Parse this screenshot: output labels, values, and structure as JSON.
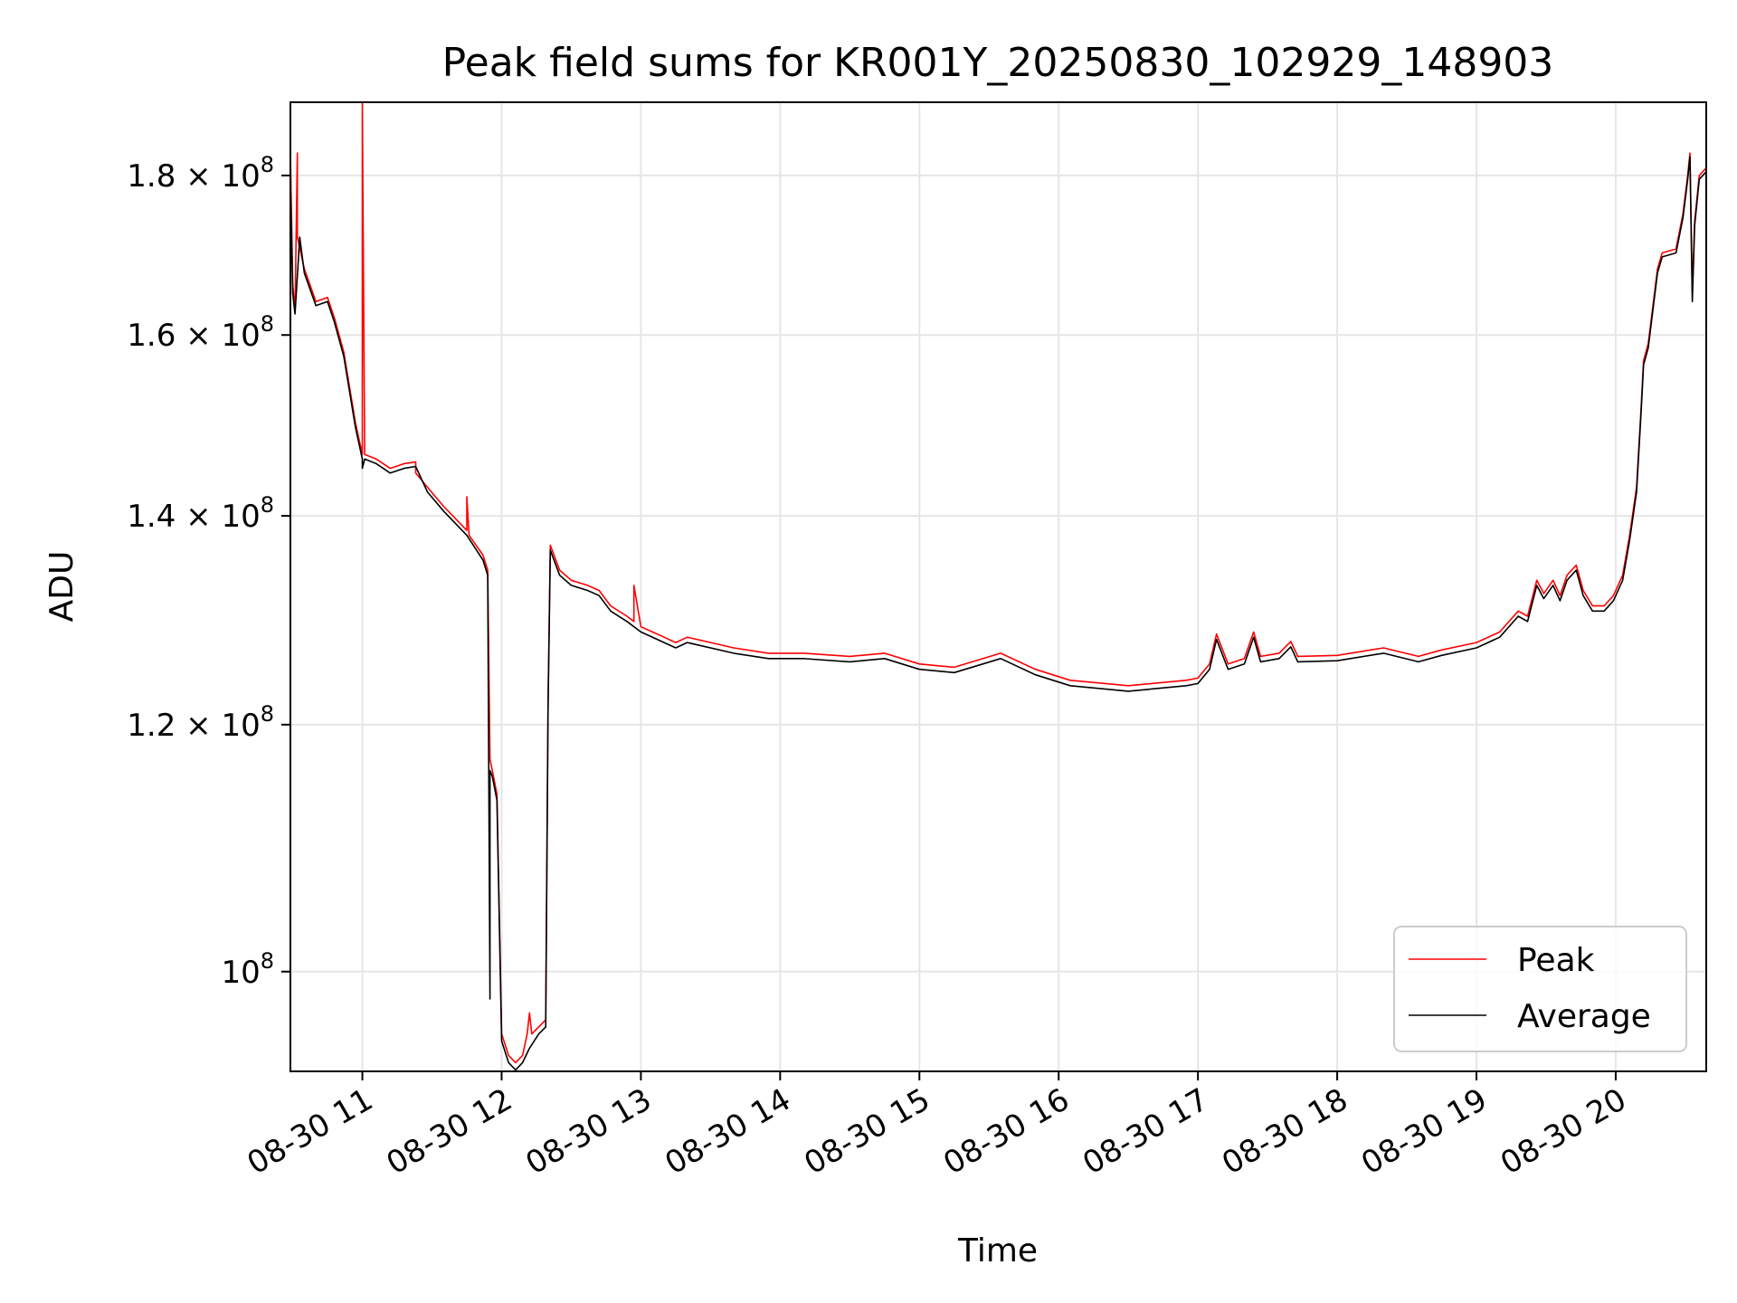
{
  "chart_data": {
    "type": "line",
    "title": "Peak field sums for KR001Y_20250830_102929_148903",
    "xlabel": "Time",
    "ylabel": "ADU",
    "y_scale": "log",
    "xlim": [
      "2025-08-30 10:29",
      "2025-08-30 20:39"
    ],
    "ylim": [
      92900000,
      190000000
    ],
    "grid": true,
    "legend_position": "lower-right",
    "x_ticks": [
      {
        "t": "2025-08-30 11:00",
        "label": "08-30 11"
      },
      {
        "t": "2025-08-30 12:00",
        "label": "08-30 12"
      },
      {
        "t": "2025-08-30 13:00",
        "label": "08-30 13"
      },
      {
        "t": "2025-08-30 14:00",
        "label": "08-30 14"
      },
      {
        "t": "2025-08-30 15:00",
        "label": "08-30 15"
      },
      {
        "t": "2025-08-30 16:00",
        "label": "08-30 16"
      },
      {
        "t": "2025-08-30 17:00",
        "label": "08-30 17"
      },
      {
        "t": "2025-08-30 18:00",
        "label": "08-30 18"
      },
      {
        "t": "2025-08-30 19:00",
        "label": "08-30 19"
      },
      {
        "t": "2025-08-30 20:00",
        "label": "08-30 20"
      }
    ],
    "y_ticks": [
      {
        "v": 100000000,
        "mant": "10",
        "exp": "8",
        "mult": ""
      },
      {
        "v": 120000000,
        "mant": "1.2",
        "exp": "8",
        "mult": "× 10"
      },
      {
        "v": 140000000,
        "mant": "1.4",
        "exp": "8",
        "mult": "× 10"
      },
      {
        "v": 160000000,
        "mant": "1.6",
        "exp": "8",
        "mult": "× 10"
      },
      {
        "v": 180000000,
        "mant": "1.8",
        "exp": "8",
        "mult": "× 10"
      }
    ],
    "series": [
      {
        "name": "Peak",
        "color": "#ff0000",
        "points": [
          [
            "2025-08-30 10:29",
            183000000.0
          ],
          [
            "2025-08-30 10:30",
            166000000.0
          ],
          [
            "2025-08-30 10:31",
            163000000.0
          ],
          [
            "2025-08-30 10:32",
            183000000.0
          ],
          [
            "2025-08-30 10:32",
            172000000.0
          ],
          [
            "2025-08-30 10:35",
            168000000.0
          ],
          [
            "2025-08-30 10:40",
            164000000.0
          ],
          [
            "2025-08-30 10:45",
            164500000.0
          ],
          [
            "2025-08-30 10:48",
            162000000.0
          ],
          [
            "2025-08-30 10:52",
            158000000.0
          ],
          [
            "2025-08-30 10:57",
            150000000.0
          ],
          [
            "2025-08-30 11:00",
            146500000.0
          ],
          [
            "2025-08-30 11:00",
            190000000.0
          ],
          [
            "2025-08-30 11:01",
            146500000.0
          ],
          [
            "2025-08-30 11:06",
            146000000.0
          ],
          [
            "2025-08-30 11:12",
            145000000.0
          ],
          [
            "2025-08-30 11:18",
            145500000.0
          ],
          [
            "2025-08-30 11:23",
            145700000.0
          ],
          [
            "2025-08-30 11:23",
            144500000.0
          ],
          [
            "2025-08-30 11:28",
            143000000.0
          ],
          [
            "2025-08-30 11:35",
            141000000.0
          ],
          [
            "2025-08-30 11:45",
            138500000.0
          ],
          [
            "2025-08-30 11:45",
            142000000.0
          ],
          [
            "2025-08-30 11:46",
            138000000.0
          ],
          [
            "2025-08-30 11:52",
            136000000.0
          ],
          [
            "2025-08-30 11:54",
            134500000.0
          ],
          [
            "2025-08-30 11:55",
            117000000.0
          ],
          [
            "2025-08-30 11:56",
            116000000.0
          ],
          [
            "2025-08-30 11:58",
            114000000.0
          ],
          [
            "2025-08-30 12:00",
            95500000.0
          ],
          [
            "2025-08-30 12:03",
            94000000.0
          ],
          [
            "2025-08-30 12:06",
            93500000.0
          ],
          [
            "2025-08-30 12:09",
            94000000.0
          ],
          [
            "2025-08-30 12:11",
            95500000.0
          ],
          [
            "2025-08-30 12:12",
            97000000.0
          ],
          [
            "2025-08-30 12:13",
            95500000.0
          ],
          [
            "2025-08-30 12:16",
            96000000.0
          ],
          [
            "2025-08-30 12:19",
            96500000.0
          ],
          [
            "2025-08-30 12:20",
            122000000.0
          ],
          [
            "2025-08-30 12:21",
            137000000.0
          ],
          [
            "2025-08-30 12:25",
            134500000.0
          ],
          [
            "2025-08-30 12:30",
            133500000.0
          ],
          [
            "2025-08-30 12:37",
            133000000.0
          ],
          [
            "2025-08-30 12:42",
            132500000.0
          ],
          [
            "2025-08-30 12:47",
            131000000.0
          ],
          [
            "2025-08-30 12:54",
            130000000.0
          ],
          [
            "2025-08-30 12:57",
            129500000.0
          ],
          [
            "2025-08-30 12:57",
            133000000.0
          ],
          [
            "2025-08-30 13:00",
            129000000.0
          ],
          [
            "2025-08-30 13:10",
            128000000.0
          ],
          [
            "2025-08-30 13:15",
            127500000.0
          ],
          [
            "2025-08-30 13:20",
            128000000.0
          ],
          [
            "2025-08-30 13:40",
            127000000.0
          ],
          [
            "2025-08-30 13:55",
            126500000.0
          ],
          [
            "2025-08-30 14:10",
            126500000.0
          ],
          [
            "2025-08-30 14:30",
            126200000.0
          ],
          [
            "2025-08-30 14:45",
            126500000.0
          ],
          [
            "2025-08-30 15:00",
            125500000.0
          ],
          [
            "2025-08-30 15:15",
            125200000.0
          ],
          [
            "2025-08-30 15:35",
            126500000.0
          ],
          [
            "2025-08-30 15:50",
            125000000.0
          ],
          [
            "2025-08-30 16:05",
            124000000.0
          ],
          [
            "2025-08-30 16:30",
            123500000.0
          ],
          [
            "2025-08-30 16:55",
            124000000.0
          ],
          [
            "2025-08-30 17:00",
            124200000.0
          ],
          [
            "2025-08-30 17:05",
            125500000.0
          ],
          [
            "2025-08-30 17:08",
            128300000.0
          ],
          [
            "2025-08-30 17:13",
            125500000.0
          ],
          [
            "2025-08-30 17:20",
            126000000.0
          ],
          [
            "2025-08-30 17:24",
            128500000.0
          ],
          [
            "2025-08-30 17:27",
            126200000.0
          ],
          [
            "2025-08-30 17:35",
            126500000.0
          ],
          [
            "2025-08-30 17:40",
            127600000.0
          ],
          [
            "2025-08-30 17:43",
            126200000.0
          ],
          [
            "2025-08-30 18:00",
            126300000.0
          ],
          [
            "2025-08-30 18:20",
            127000000.0
          ],
          [
            "2025-08-30 18:35",
            126200000.0
          ],
          [
            "2025-08-30 18:45",
            126800000.0
          ],
          [
            "2025-08-30 19:00",
            127500000.0
          ],
          [
            "2025-08-30 19:10",
            128500000.0
          ],
          [
            "2025-08-30 19:18",
            130500000.0
          ],
          [
            "2025-08-30 19:22",
            130000000.0
          ],
          [
            "2025-08-30 19:26",
            133500000.0
          ],
          [
            "2025-08-30 19:29",
            132200000.0
          ],
          [
            "2025-08-30 19:33",
            133500000.0
          ],
          [
            "2025-08-30 19:36",
            132000000.0
          ],
          [
            "2025-08-30 19:39",
            134000000.0
          ],
          [
            "2025-08-30 19:43",
            135000000.0
          ],
          [
            "2025-08-30 19:46",
            132500000.0
          ],
          [
            "2025-08-30 19:50",
            131000000.0
          ],
          [
            "2025-08-30 19:55",
            131000000.0
          ],
          [
            "2025-08-30 19:59",
            132000000.0
          ],
          [
            "2025-08-30 20:03",
            134000000.0
          ],
          [
            "2025-08-30 20:06",
            138000000.0
          ],
          [
            "2025-08-30 20:09",
            143000000.0
          ],
          [
            "2025-08-30 20:11",
            152000000.0
          ],
          [
            "2025-08-30 20:12",
            157000000.0
          ],
          [
            "2025-08-30 20:14",
            159000000.0
          ],
          [
            "2025-08-30 20:18",
            168000000.0
          ],
          [
            "2025-08-30 20:20",
            170000000.0
          ],
          [
            "2025-08-30 20:26",
            170500000.0
          ],
          [
            "2025-08-30 20:29",
            175000000.0
          ],
          [
            "2025-08-30 20:31",
            180000000.0
          ],
          [
            "2025-08-30 20:32",
            183000000.0
          ],
          [
            "2025-08-30 20:33",
            165000000.0
          ],
          [
            "2025-08-30 20:34",
            174000000.0
          ],
          [
            "2025-08-30 20:36",
            180000000.0
          ],
          [
            "2025-08-30 20:39",
            181000000.0
          ]
        ]
      },
      {
        "name": "Average",
        "color": "#000000",
        "points": [
          [
            "2025-08-30 10:29",
            179000000.0
          ],
          [
            "2025-08-30 10:30",
            165000000.0
          ],
          [
            "2025-08-30 10:31",
            162500000.0
          ],
          [
            "2025-08-30 10:33",
            172000000.0
          ],
          [
            "2025-08-30 10:35",
            167500000.0
          ],
          [
            "2025-08-30 10:40",
            163500000.0
          ],
          [
            "2025-08-30 10:45",
            164000000.0
          ],
          [
            "2025-08-30 10:48",
            161500000.0
          ],
          [
            "2025-08-30 10:52",
            157500000.0
          ],
          [
            "2025-08-30 10:57",
            149500000.0
          ],
          [
            "2025-08-30 11:00",
            146000000.0
          ],
          [
            "2025-08-30 11:00",
            145000000.0
          ],
          [
            "2025-08-30 11:01",
            146000000.0
          ],
          [
            "2025-08-30 11:06",
            145500000.0
          ],
          [
            "2025-08-30 11:12",
            144500000.0
          ],
          [
            "2025-08-30 11:18",
            145000000.0
          ],
          [
            "2025-08-30 11:23",
            145200000.0
          ],
          [
            "2025-08-30 11:28",
            142500000.0
          ],
          [
            "2025-08-30 11:35",
            140500000.0
          ],
          [
            "2025-08-30 11:45",
            138000000.0
          ],
          [
            "2025-08-30 11:52",
            135500000.0
          ],
          [
            "2025-08-30 11:54",
            134000000.0
          ],
          [
            "2025-08-30 11:55",
            98000000.0
          ],
          [
            "2025-08-30 11:55",
            116000000.0
          ],
          [
            "2025-08-30 11:56",
            115500000.0
          ],
          [
            "2025-08-30 11:58",
            113500000.0
          ],
          [
            "2025-08-30 12:00",
            95000000.0
          ],
          [
            "2025-08-30 12:03",
            93500000.0
          ],
          [
            "2025-08-30 12:06",
            93000000.0
          ],
          [
            "2025-08-30 12:09",
            93500000.0
          ],
          [
            "2025-08-30 12:12",
            94500000.0
          ],
          [
            "2025-08-30 12:16",
            95500000.0
          ],
          [
            "2025-08-30 12:19",
            96000000.0
          ],
          [
            "2025-08-30 12:20",
            121500000.0
          ],
          [
            "2025-08-30 12:21",
            136500000.0
          ],
          [
            "2025-08-30 12:25",
            134000000.0
          ],
          [
            "2025-08-30 12:30",
            133000000.0
          ],
          [
            "2025-08-30 12:37",
            132500000.0
          ],
          [
            "2025-08-30 12:42",
            132000000.0
          ],
          [
            "2025-08-30 12:47",
            130500000.0
          ],
          [
            "2025-08-30 12:54",
            129500000.0
          ],
          [
            "2025-08-30 13:00",
            128500000.0
          ],
          [
            "2025-08-30 13:10",
            127500000.0
          ],
          [
            "2025-08-30 13:15",
            127000000.0
          ],
          [
            "2025-08-30 13:20",
            127500000.0
          ],
          [
            "2025-08-30 13:40",
            126500000.0
          ],
          [
            "2025-08-30 13:55",
            126000000.0
          ],
          [
            "2025-08-30 14:10",
            126000000.0
          ],
          [
            "2025-08-30 14:30",
            125700000.0
          ],
          [
            "2025-08-30 14:45",
            126000000.0
          ],
          [
            "2025-08-30 15:00",
            125000000.0
          ],
          [
            "2025-08-30 15:15",
            124700000.0
          ],
          [
            "2025-08-30 15:35",
            126000000.0
          ],
          [
            "2025-08-30 15:50",
            124500000.0
          ],
          [
            "2025-08-30 16:05",
            123500000.0
          ],
          [
            "2025-08-30 16:30",
            123000000.0
          ],
          [
            "2025-08-30 16:55",
            123500000.0
          ],
          [
            "2025-08-30 17:00",
            123700000.0
          ],
          [
            "2025-08-30 17:05",
            125000000.0
          ],
          [
            "2025-08-30 17:08",
            127800000.0
          ],
          [
            "2025-08-30 17:13",
            125000000.0
          ],
          [
            "2025-08-30 17:20",
            125500000.0
          ],
          [
            "2025-08-30 17:24",
            128000000.0
          ],
          [
            "2025-08-30 17:27",
            125700000.0
          ],
          [
            "2025-08-30 17:35",
            126000000.0
          ],
          [
            "2025-08-30 17:40",
            127100000.0
          ],
          [
            "2025-08-30 17:43",
            125700000.0
          ],
          [
            "2025-08-30 18:00",
            125800000.0
          ],
          [
            "2025-08-30 18:20",
            126500000.0
          ],
          [
            "2025-08-30 18:35",
            125700000.0
          ],
          [
            "2025-08-30 18:45",
            126300000.0
          ],
          [
            "2025-08-30 19:00",
            127000000.0
          ],
          [
            "2025-08-30 19:10",
            128000000.0
          ],
          [
            "2025-08-30 19:18",
            130000000.0
          ],
          [
            "2025-08-30 19:22",
            129500000.0
          ],
          [
            "2025-08-30 19:26",
            133000000.0
          ],
          [
            "2025-08-30 19:29",
            131700000.0
          ],
          [
            "2025-08-30 19:33",
            133000000.0
          ],
          [
            "2025-08-30 19:36",
            131500000.0
          ],
          [
            "2025-08-30 19:39",
            133500000.0
          ],
          [
            "2025-08-30 19:43",
            134500000.0
          ],
          [
            "2025-08-30 19:46",
            132000000.0
          ],
          [
            "2025-08-30 19:50",
            130500000.0
          ],
          [
            "2025-08-30 19:55",
            130500000.0
          ],
          [
            "2025-08-30 19:59",
            131500000.0
          ],
          [
            "2025-08-30 20:03",
            133500000.0
          ],
          [
            "2025-08-30 20:06",
            137500000.0
          ],
          [
            "2025-08-30 20:09",
            142500000.0
          ],
          [
            "2025-08-30 20:11",
            151500000.0
          ],
          [
            "2025-08-30 20:12",
            156500000.0
          ],
          [
            "2025-08-30 20:14",
            158500000.0
          ],
          [
            "2025-08-30 20:18",
            167500000.0
          ],
          [
            "2025-08-30 20:20",
            169500000.0
          ],
          [
            "2025-08-30 20:26",
            170000000.0
          ],
          [
            "2025-08-30 20:29",
            174500000.0
          ],
          [
            "2025-08-30 20:31",
            179500000.0
          ],
          [
            "2025-08-30 20:32",
            182500000.0
          ],
          [
            "2025-08-30 20:33",
            164000000.0
          ],
          [
            "2025-08-30 20:34",
            173500000.0
          ],
          [
            "2025-08-30 20:36",
            179500000.0
          ],
          [
            "2025-08-30 20:39",
            180500000.0
          ]
        ]
      }
    ]
  }
}
